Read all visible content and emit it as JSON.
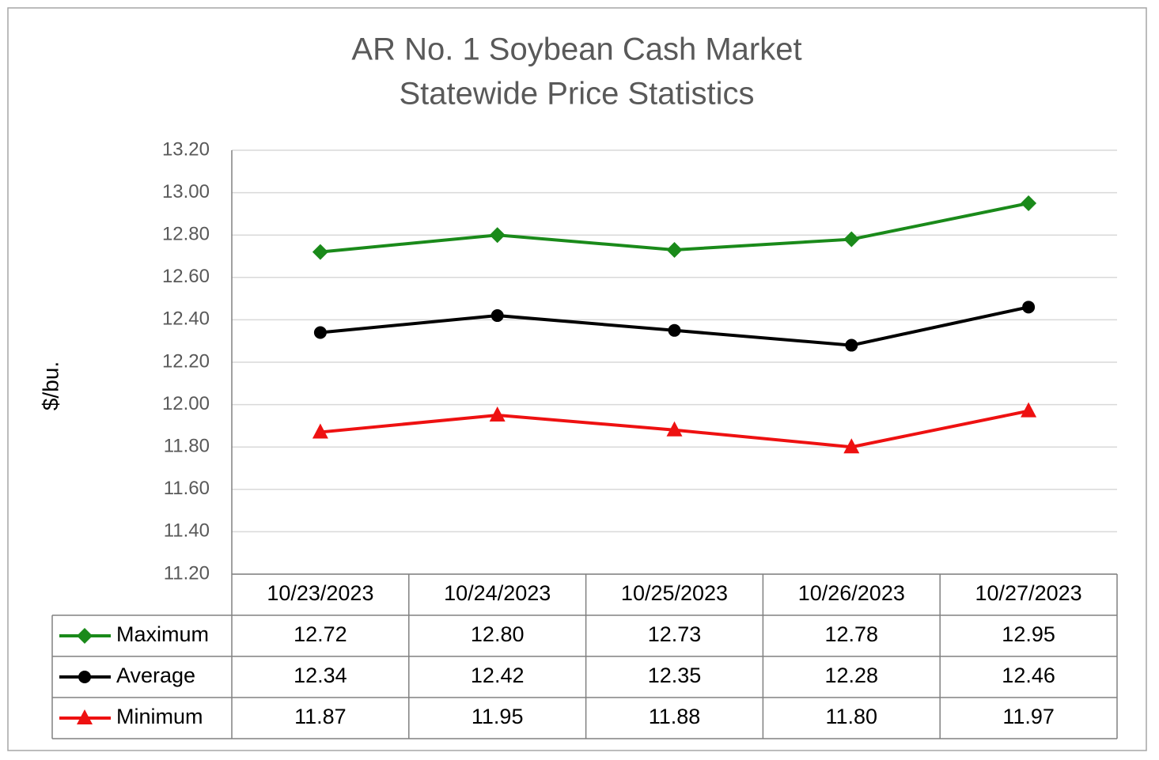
{
  "chart_data": {
    "type": "line",
    "title": "AR No. 1 Soybean Cash Market",
    "subtitle": "Statewide Price Statistics",
    "y_label": "$/bu.",
    "categories": [
      "10/23/2023",
      "10/24/2023",
      "10/25/2023",
      "10/26/2023",
      "10/27/2023"
    ],
    "series": [
      {
        "name": "Maximum",
        "color": "#1a8a1a",
        "marker": "diamond",
        "values": [
          12.72,
          12.8,
          12.73,
          12.78,
          12.95
        ],
        "value_labels": [
          "12.72",
          "12.80",
          "12.73",
          "12.78",
          "12.95"
        ]
      },
      {
        "name": "Average",
        "color": "#000000",
        "marker": "circle",
        "values": [
          12.34,
          12.42,
          12.35,
          12.28,
          12.46
        ],
        "value_labels": [
          "12.34",
          "12.42",
          "12.35",
          "12.28",
          "12.46"
        ]
      },
      {
        "name": "Minimum",
        "color": "#ee1111",
        "marker": "triangle",
        "values": [
          11.87,
          11.95,
          11.88,
          11.8,
          11.97
        ],
        "value_labels": [
          "11.87",
          "11.95",
          "11.88",
          "11.80",
          "11.97"
        ]
      }
    ],
    "ylim": [
      11.2,
      13.2
    ],
    "yticks": [
      {
        "value": 11.2,
        "label": "11.20"
      },
      {
        "value": 11.4,
        "label": "11.40"
      },
      {
        "value": 11.6,
        "label": "11.60"
      },
      {
        "value": 11.8,
        "label": "11.80"
      },
      {
        "value": 12,
        "label": "12.00"
      },
      {
        "value": 12.2,
        "label": "12.20"
      },
      {
        "value": 12.4,
        "label": "12.40"
      },
      {
        "value": 12.6,
        "label": "12.60"
      },
      {
        "value": 12.8,
        "label": "12.80"
      },
      {
        "value": 13,
        "label": "13.00"
      },
      {
        "value": 13.2,
        "label": "13.20"
      }
    ],
    "grid": true
  }
}
